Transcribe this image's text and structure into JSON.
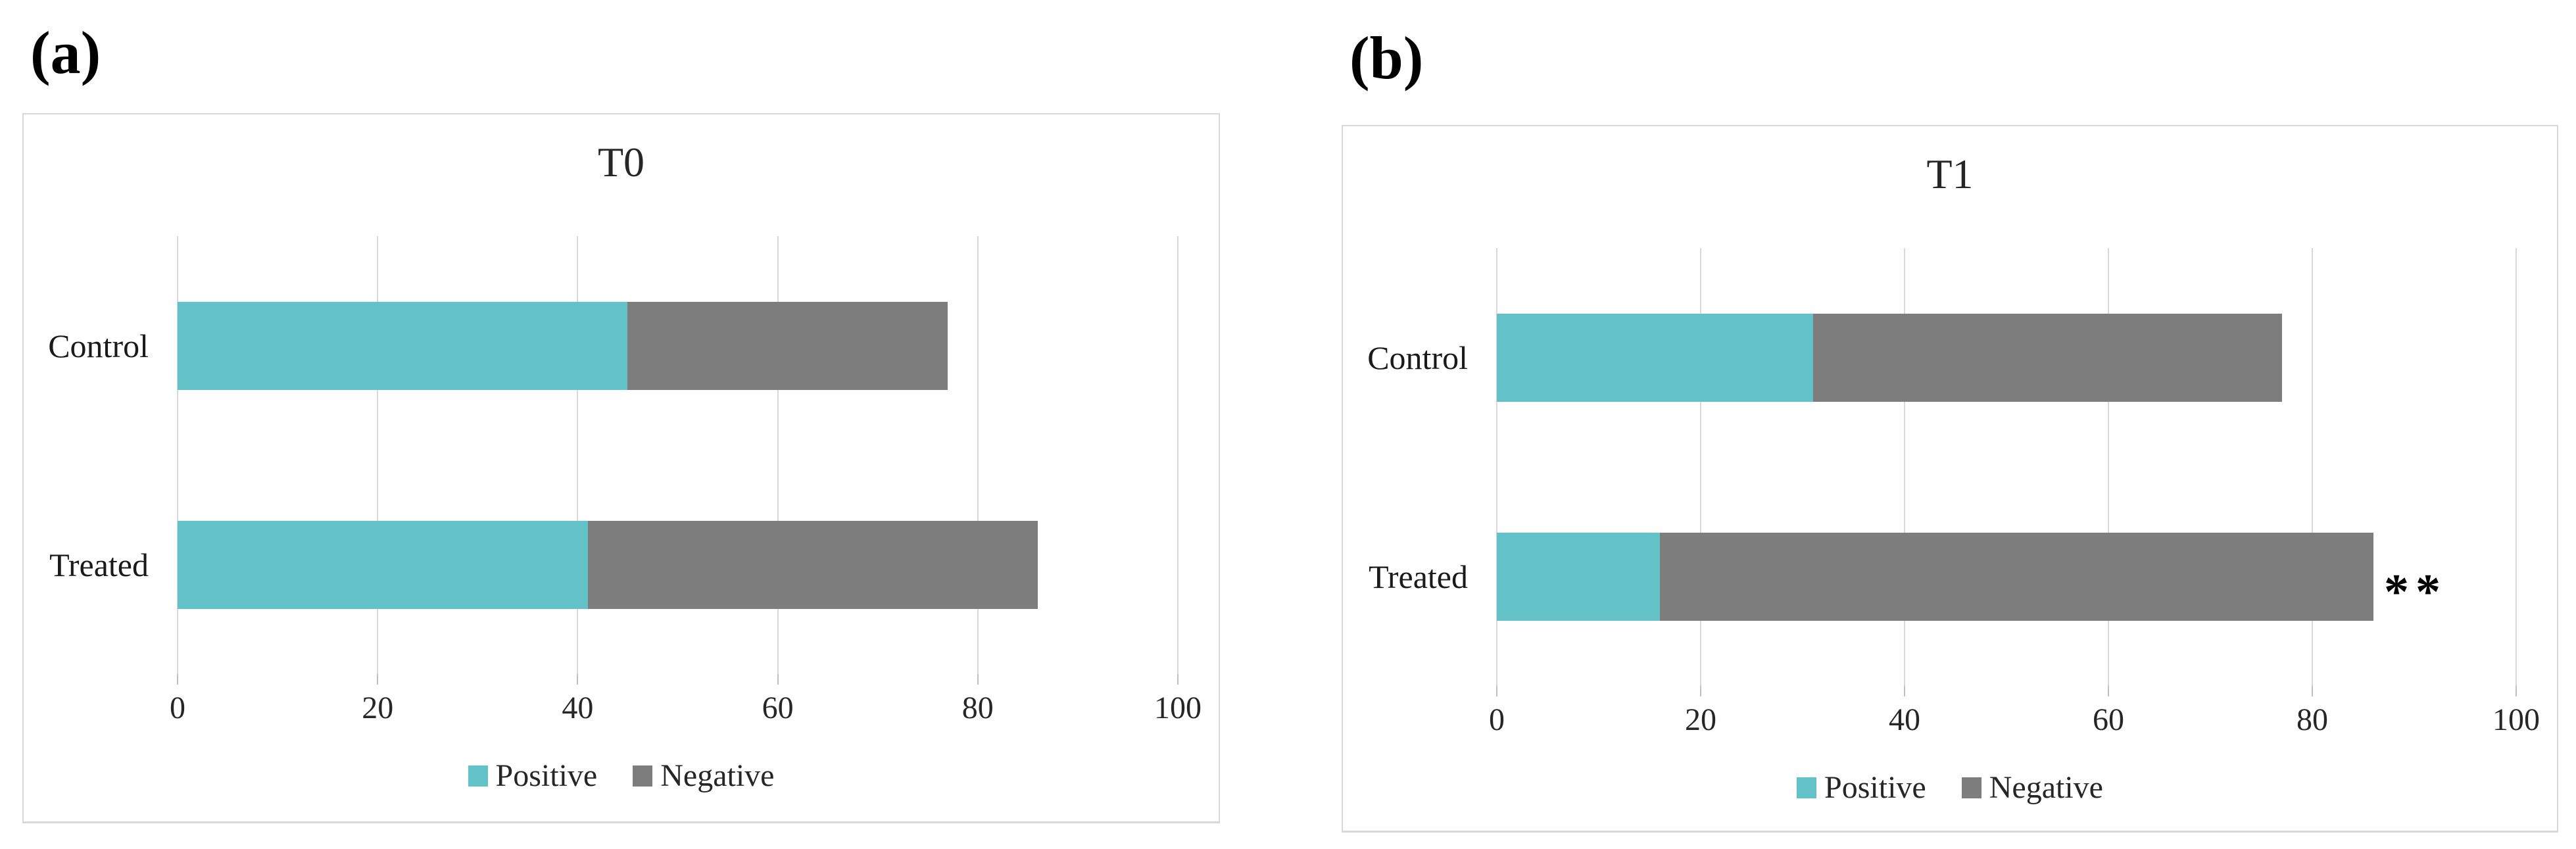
{
  "styles": {
    "positive_color": "#62C2C7",
    "negative_color": "#7D7D7D",
    "gridline_color": "#D9D9D9",
    "panel_border_color": "#D9D9D9",
    "text_color": "#262626"
  },
  "chart_data": [
    {
      "type": "bar",
      "orientation": "horizontal",
      "stacked": true,
      "panel_label": "(a)",
      "title": "T0",
      "categories": [
        "Control",
        "Treated"
      ],
      "series": [
        {
          "name": "Positive",
          "color": "#62C2C7",
          "values": [
            45,
            41
          ]
        },
        {
          "name": "Negative",
          "color": "#7D7D7D",
          "values": [
            32,
            45
          ]
        }
      ],
      "totals": [
        77,
        86
      ],
      "xlim": [
        0,
        100
      ],
      "xticks": [
        "0",
        "20",
        "40",
        "60",
        "80",
        "100"
      ],
      "grid": true,
      "legend_position": "bottom",
      "annotations": []
    },
    {
      "type": "bar",
      "orientation": "horizontal",
      "stacked": true,
      "panel_label": "(b)",
      "title": "T1",
      "categories": [
        "Control",
        "Treated"
      ],
      "series": [
        {
          "name": "Positive",
          "color": "#62C2C7",
          "values": [
            31,
            16
          ]
        },
        {
          "name": "Negative",
          "color": "#7D7D7D",
          "values": [
            46,
            70
          ]
        }
      ],
      "totals": [
        77,
        86
      ],
      "xlim": [
        0,
        100
      ],
      "xticks": [
        "0",
        "20",
        "40",
        "60",
        "80",
        "100"
      ],
      "grid": true,
      "legend_position": "bottom",
      "annotations": [
        {
          "category_index": 1,
          "category": "Treated",
          "text": "**"
        }
      ]
    }
  ]
}
